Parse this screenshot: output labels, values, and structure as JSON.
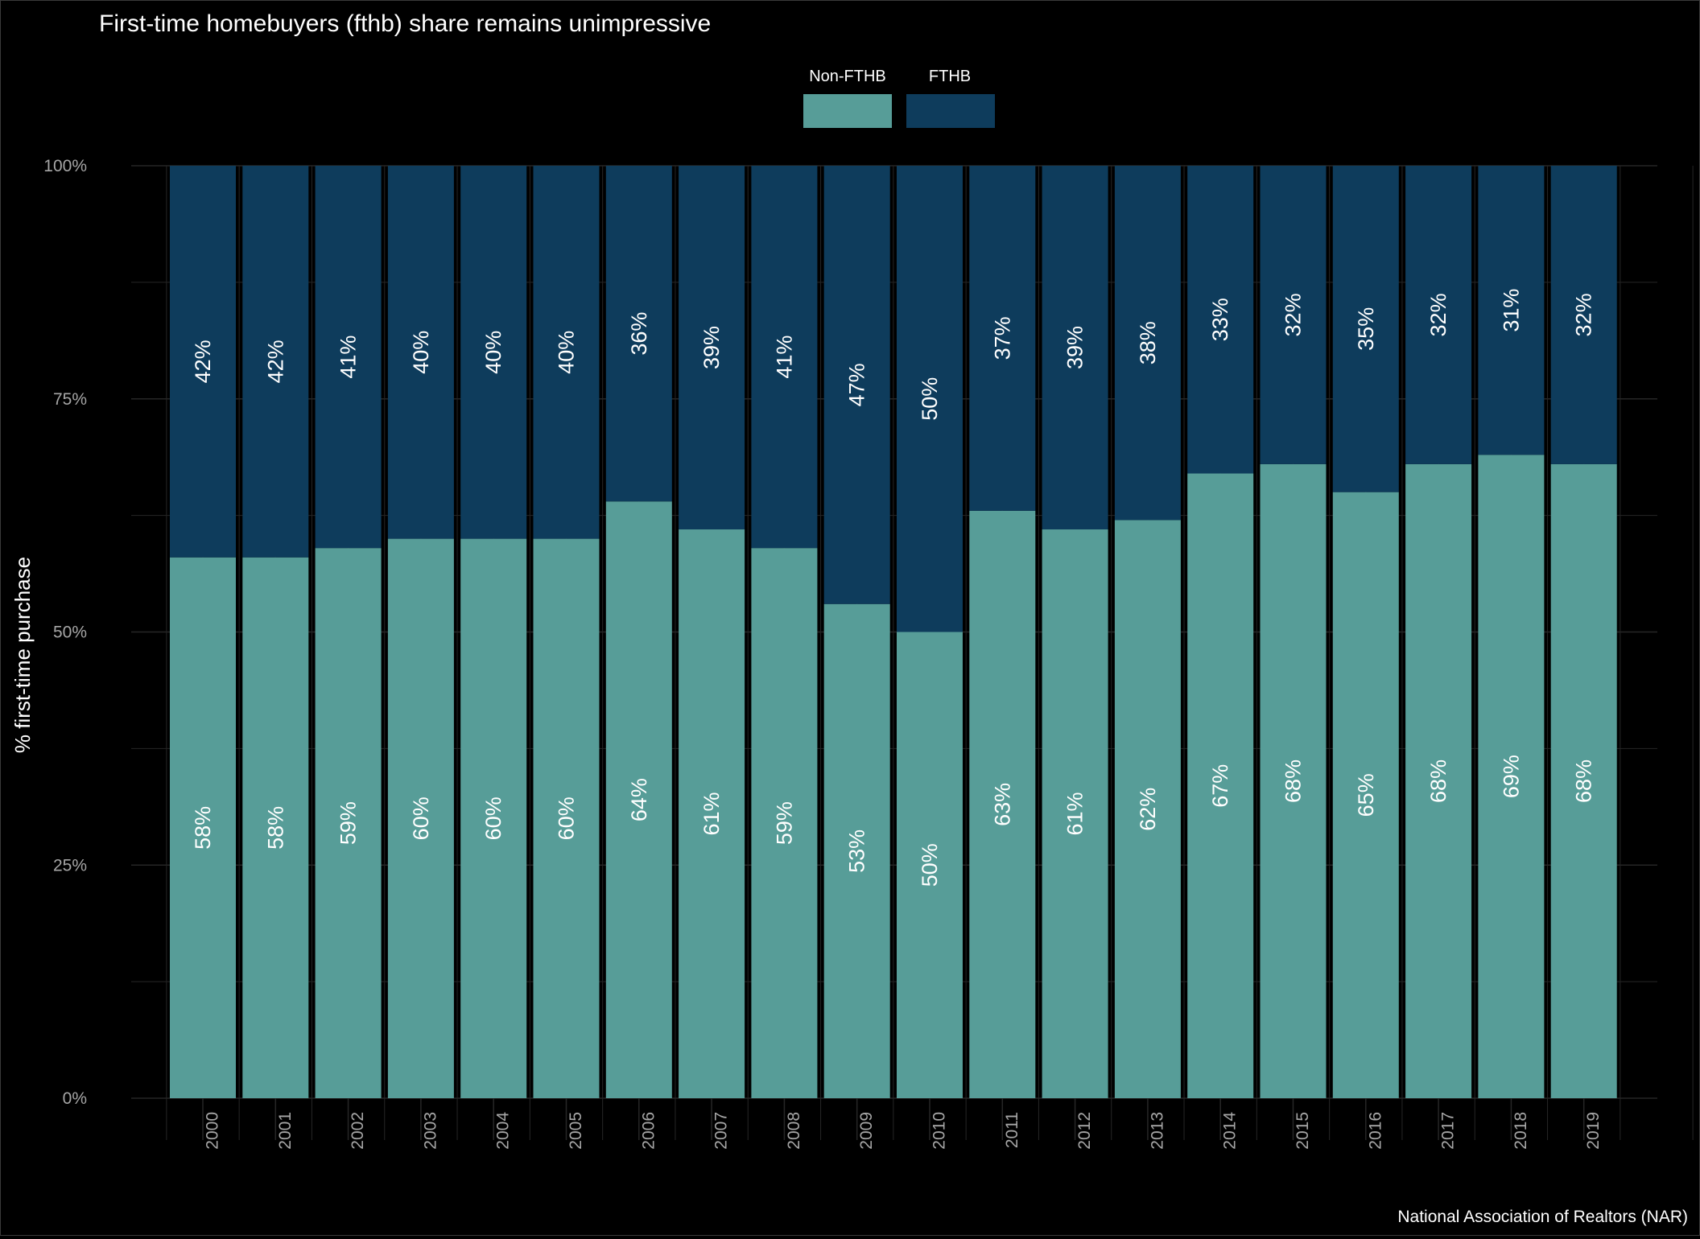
{
  "chart_data": {
    "type": "bar",
    "stacked": true,
    "title": "First-time homebuyers (fthb) share remains unimpressive",
    "ylabel": "% first-time purchase",
    "xlabel": "",
    "caption": "National Association of Realtors (NAR)",
    "ylim": [
      0,
      100
    ],
    "yticks": [
      0,
      25,
      50,
      75,
      100
    ],
    "ytick_labels": [
      "0%",
      "25%",
      "50%",
      "75%",
      "100%"
    ],
    "grid": true,
    "legend_position": "top-center",
    "categories": [
      "2000",
      "2001",
      "2002",
      "2003",
      "2004",
      "2005",
      "2006",
      "2007",
      "2008",
      "2009",
      "2010",
      "2011",
      "2012",
      "2013",
      "2014",
      "2015",
      "2016",
      "2017",
      "2018",
      "2019"
    ],
    "series": [
      {
        "name": "Non-FTHB",
        "color": "#579d98",
        "values": [
          58,
          58,
          59,
          60,
          60,
          60,
          64,
          61,
          59,
          53,
          50,
          63,
          61,
          62,
          67,
          68,
          65,
          68,
          69,
          68
        ],
        "labels": [
          "58%",
          "58%",
          "59%",
          "60%",
          "60%",
          "60%",
          "64%",
          "61%",
          "59%",
          "53%",
          "50%",
          "63%",
          "61%",
          "62%",
          "67%",
          "68%",
          "65%",
          "68%",
          "69%",
          "68%"
        ]
      },
      {
        "name": "FTHB",
        "color": "#0e3c5c",
        "values": [
          42,
          42,
          41,
          40,
          40,
          40,
          36,
          39,
          41,
          47,
          50,
          37,
          39,
          38,
          33,
          32,
          35,
          32,
          31,
          32
        ],
        "labels": [
          "42%",
          "42%",
          "41%",
          "40%",
          "40%",
          "40%",
          "36%",
          "39%",
          "41%",
          "47%",
          "50%",
          "37%",
          "39%",
          "38%",
          "33%",
          "32%",
          "35%",
          "32%",
          "31%",
          "32%"
        ]
      }
    ]
  },
  "colors": {
    "background": "#000000",
    "grid": "#262626",
    "text": "#ffffff",
    "tick_text": "#a6a6a6"
  }
}
